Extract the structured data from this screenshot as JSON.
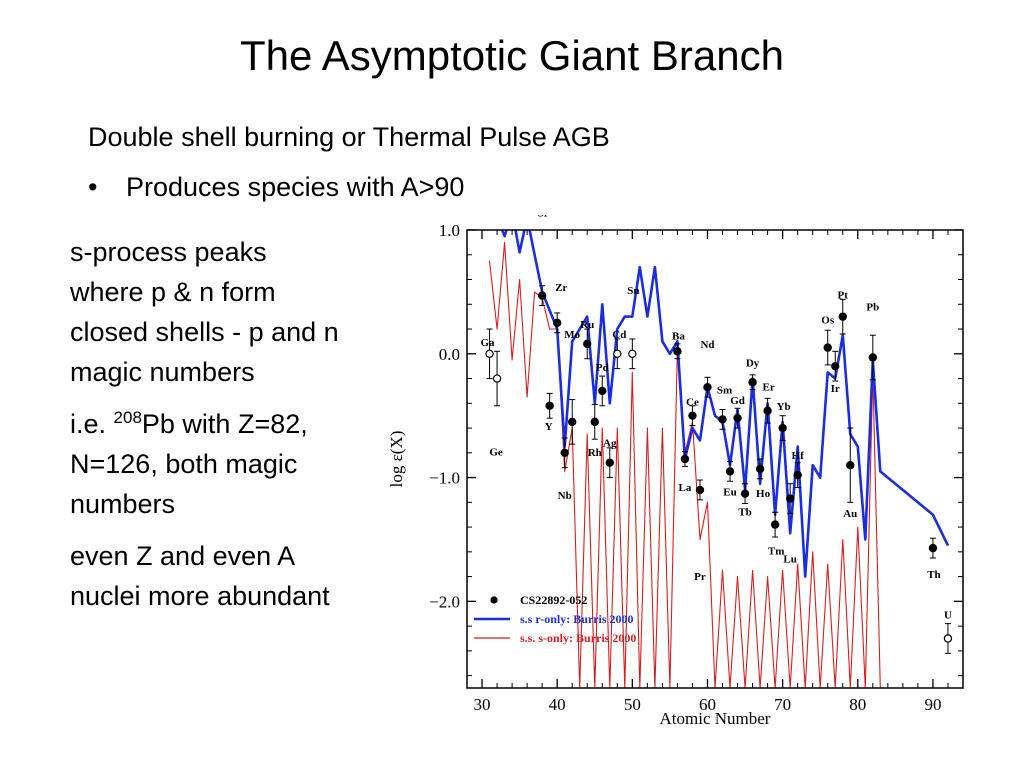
{
  "slide": {
    "title": "The Asymptotic Giant Branch",
    "subtitle": "Double shell burning or Thermal Pulse AGB",
    "bullet_marker": "•",
    "bullet": "Produces species with A>90",
    "para1": "s-process peaks where p & n form closed shells - p and n magic numbers",
    "para2_prefix": "i.e. ",
    "para2_sup": "208",
    "para2_rest": "Pb with Z=82, N=126, both magic numbers",
    "para3": "even Z and even A nuclei more abundant"
  },
  "chart_data": {
    "type": "scatter",
    "xlabel": "Atomic Number",
    "ylabel": "log ε(X)",
    "xlim": [
      28,
      94
    ],
    "ylim": [
      -2.7,
      1.0
    ],
    "xticks": [
      30,
      40,
      50,
      60,
      70,
      80,
      90
    ],
    "yticks": [
      {
        "value": 1.0,
        "label": "1.0"
      },
      {
        "value": 0.0,
        "label": "0.0"
      },
      {
        "value": -1.0,
        "label": "−1.0"
      },
      {
        "value": -2.0,
        "label": "−2.0"
      }
    ],
    "legend": {
      "placement": "bottom-left",
      "entries": [
        {
          "key": "observed",
          "label": "CS22892-052"
        },
        {
          "key": "r_only",
          "label": "s.s r-only: Burris 2000"
        },
        {
          "key": "s_only",
          "label": "s.s. s-only: Burris 2000"
        }
      ]
    },
    "colors": {
      "r_only": "#1a2ee0",
      "s_only": "#d42020",
      "observed": "#000000"
    },
    "points": [
      {
        "z": 31,
        "y": 0.0,
        "err": 0.2,
        "open": true,
        "label": "Ga",
        "lx": -2,
        "ly": 12
      },
      {
        "z": 32,
        "y": -0.2,
        "err": 0.22,
        "open": true,
        "label": "Ge",
        "lx": -1,
        "ly": -73
      },
      {
        "z": 38,
        "y": 0.47,
        "err": 0.08,
        "open": false,
        "label": "Sr",
        "lx": 1,
        "ly": 83
      },
      {
        "z": 39,
        "y": -0.42,
        "err": 0.1,
        "open": false,
        "label": "Y",
        "lx": -1,
        "ly": -20
      },
      {
        "z": 40,
        "y": 0.25,
        "err": 0.08,
        "open": false,
        "label": "Zr",
        "lx": 4,
        "ly": 36
      },
      {
        "z": 41,
        "y": -0.8,
        "err": 0.12,
        "open": false,
        "label": "Nb",
        "lx": 0,
        "ly": -42
      },
      {
        "z": 42,
        "y": -0.55,
        "err": 0.18,
        "open": false,
        "label": "Mo",
        "lx": 0,
        "ly": 88
      },
      {
        "z": 44,
        "y": 0.08,
        "err": 0.12,
        "open": false,
        "label": "Ru",
        "lx": 0,
        "ly": 20
      },
      {
        "z": 45,
        "y": -0.55,
        "err": 0.14,
        "open": false,
        "label": "Rh",
        "lx": 0,
        "ly": -30
      },
      {
        "z": 46,
        "y": -0.3,
        "err": 0.12,
        "open": false,
        "label": "Pd",
        "lx": 0,
        "ly": 24
      },
      {
        "z": 47,
        "y": -0.88,
        "err": 0.12,
        "open": false,
        "label": "Ag",
        "lx": 0,
        "ly": 20
      },
      {
        "z": 48,
        "y": 0.0,
        "err": 0.12,
        "open": true,
        "label": "Cd",
        "lx": 2,
        "ly": 20
      },
      {
        "z": 50,
        "y": 0.0,
        "err": 0.12,
        "open": true,
        "label": "Sn",
        "lx": 1,
        "ly": 64
      },
      {
        "z": 56,
        "y": 0.02,
        "err": 0.06,
        "open": false,
        "label": "Ba",
        "lx": 1,
        "ly": 16
      },
      {
        "z": 57,
        "y": -0.85,
        "err": 0.06,
        "open": false,
        "label": "La",
        "lx": 0,
        "ly": -28
      },
      {
        "z": 58,
        "y": -0.5,
        "err": 0.08,
        "open": false,
        "label": "Ce",
        "lx": 0,
        "ly": 14
      },
      {
        "z": 59,
        "y": -1.1,
        "err": 0.08,
        "open": false,
        "label": "Pr",
        "lx": 0,
        "ly": -86
      },
      {
        "z": 60,
        "y": -0.27,
        "err": 0.08,
        "open": false,
        "label": "Nd",
        "lx": 0,
        "ly": 43
      },
      {
        "z": 62,
        "y": -0.53,
        "err": 0.08,
        "open": false,
        "label": "Sm",
        "lx": 2,
        "ly": 30
      },
      {
        "z": 63,
        "y": -0.95,
        "err": 0.08,
        "open": false,
        "label": "Eu",
        "lx": 0,
        "ly": -20
      },
      {
        "z": 64,
        "y": -0.52,
        "err": 0.08,
        "open": false,
        "label": "Gd",
        "lx": 0,
        "ly": 18
      },
      {
        "z": 65,
        "y": -1.13,
        "err": 0.08,
        "open": false,
        "label": "Tb",
        "lx": 0,
        "ly": -18
      },
      {
        "z": 66,
        "y": -0.23,
        "err": 0.06,
        "open": false,
        "label": "Dy",
        "lx": 0,
        "ly": 20
      },
      {
        "z": 67,
        "y": -0.93,
        "err": 0.08,
        "open": false,
        "label": "Ho",
        "lx": 3,
        "ly": -24
      },
      {
        "z": 68,
        "y": -0.46,
        "err": 0.1,
        "open": false,
        "label": "Er",
        "lx": 1,
        "ly": 24
      },
      {
        "z": 69,
        "y": -1.38,
        "err": 0.1,
        "open": false,
        "label": "Tm",
        "lx": 1,
        "ly": -26
      },
      {
        "z": 70,
        "y": -0.6,
        "err": 0.1,
        "open": false,
        "label": "Yb",
        "lx": 1,
        "ly": 22
      },
      {
        "z": 71,
        "y": -1.17,
        "err": 0.12,
        "open": false,
        "label": "Lu",
        "lx": 0,
        "ly": -60
      },
      {
        "z": 72,
        "y": -0.98,
        "err": 0.1,
        "open": false,
        "label": "Hf",
        "lx": 0,
        "ly": 20
      },
      {
        "z": 76,
        "y": 0.05,
        "err": 0.14,
        "open": false,
        "label": "Os",
        "lx": 0,
        "ly": 28
      },
      {
        "z": 77,
        "y": -0.1,
        "err": 0.12,
        "open": false,
        "label": "Ir",
        "lx": 0,
        "ly": -22
      },
      {
        "z": 78,
        "y": 0.3,
        "err": 0.14,
        "open": false,
        "label": "Pt",
        "lx": 0,
        "ly": 22
      },
      {
        "z": 79,
        "y": -0.9,
        "err": 0.3,
        "open": false,
        "label": "Au",
        "lx": 0,
        "ly": -48
      },
      {
        "z": 82,
        "y": -0.03,
        "err": 0.18,
        "open": false,
        "label": "Pb",
        "lx": 0,
        "ly": 51
      },
      {
        "z": 90,
        "y": -1.57,
        "err": 0.08,
        "open": false,
        "label": "Th",
        "lx": 1,
        "ly": -26
      },
      {
        "z": 92,
        "y": -2.3,
        "err": 0.12,
        "open": true,
        "label": "U",
        "lx": 0,
        "ly": 24
      }
    ],
    "r_only": {
      "x": [
        31,
        32,
        33,
        34,
        35,
        36,
        37,
        38,
        39,
        40,
        41,
        42,
        43,
        44,
        45,
        46,
        47,
        48,
        49,
        50,
        51,
        52,
        53,
        54,
        55,
        56,
        57,
        58,
        59,
        60,
        61,
        62,
        63,
        64,
        65,
        66,
        67,
        68,
        69,
        70,
        71,
        72,
        73,
        74,
        75,
        76,
        77,
        78,
        79,
        80,
        81,
        82,
        83,
        90,
        92
      ],
      "y": [
        1.1,
        1.1,
        0.95,
        1.15,
        0.82,
        1.1,
        0.8,
        0.5,
        0.35,
        0.2,
        -0.75,
        0.1,
        0.2,
        0.3,
        -0.4,
        0.4,
        -0.4,
        0.2,
        0.3,
        0.3,
        0.7,
        0.3,
        0.7,
        0.1,
        0.0,
        0.1,
        -0.85,
        -0.6,
        -0.7,
        -0.27,
        -0.5,
        -0.55,
        -0.9,
        -0.45,
        -1.1,
        -0.2,
        -1.05,
        -0.4,
        -1.3,
        -0.55,
        -1.45,
        -0.75,
        -1.8,
        -0.9,
        -1.0,
        -0.15,
        -0.2,
        0.15,
        -0.65,
        -0.75,
        -1.5,
        -0.05,
        -0.95,
        -1.3,
        -1.55
      ]
    },
    "s_only": {
      "x": [
        31,
        32,
        33,
        34,
        35,
        36,
        37,
        38,
        39,
        40,
        41,
        42,
        43,
        44,
        45,
        46,
        47,
        48,
        49,
        50,
        51,
        52,
        53,
        54,
        55,
        56,
        57,
        58,
        59,
        60,
        61,
        62,
        63,
        64,
        65,
        66,
        67,
        68,
        69,
        70,
        71,
        72,
        73,
        74,
        75,
        76,
        77,
        78,
        79,
        80,
        81,
        82,
        83
      ],
      "y": [
        0.75,
        0.2,
        0.9,
        -0.05,
        0.6,
        -0.35,
        0.5,
        0.45,
        0.2,
        0.2,
        -0.95,
        -0.6,
        -2.7,
        -0.65,
        -2.7,
        -0.6,
        -2.7,
        -0.6,
        -2.7,
        -0.15,
        -2.7,
        -0.6,
        -2.7,
        -0.6,
        -2.7,
        0.05,
        -0.8,
        -0.55,
        -1.5,
        -1.2,
        -2.7,
        -1.75,
        -2.7,
        -1.8,
        -2.7,
        -1.75,
        -2.7,
        -1.8,
        -2.7,
        -1.75,
        -2.7,
        -1.7,
        -2.7,
        -1.6,
        -2.7,
        -1.7,
        -2.7,
        -1.5,
        -2.7,
        -1.4,
        -2.7,
        -0.15,
        -2.7
      ]
    }
  }
}
